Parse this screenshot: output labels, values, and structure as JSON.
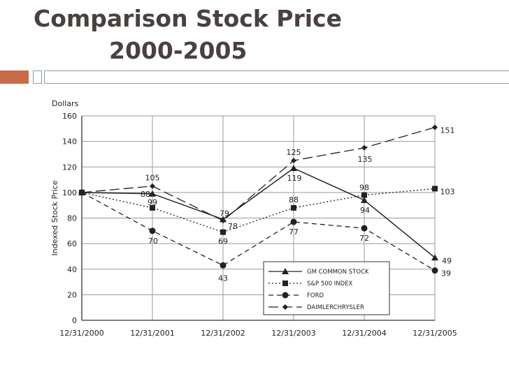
{
  "slide": {
    "title_line1": "Comparison Stock Price",
    "title_line2": "2000-2005",
    "accent_color": "#c96a48",
    "title_color": "#4a4040"
  },
  "chart_data": {
    "type": "line",
    "title": "",
    "units_label": "Dollars",
    "ylabel": "Indexed Stock Price",
    "xlabel": "",
    "ylim": [
      0,
      160
    ],
    "yticks": [
      0,
      20,
      40,
      60,
      80,
      100,
      120,
      140,
      160
    ],
    "categories": [
      "12/31/2000",
      "12/31/2001",
      "12/31/2002",
      "12/31/2003",
      "12/31/2004",
      "12/31/2005"
    ],
    "grid": true,
    "legend_position": "bottom-right",
    "series": [
      {
        "name": "GM COMMON STOCK",
        "values": [
          100,
          99,
          79,
          119,
          94,
          49
        ],
        "labels": [
          "",
          "99",
          "79",
          "119",
          "94",
          "49"
        ],
        "marker": "triangle",
        "dash": "solid"
      },
      {
        "name": "S&P 500 INDEX",
        "values": [
          100,
          88,
          69,
          88,
          98,
          103
        ],
        "labels": [
          "",
          "88",
          "69",
          "88",
          "98",
          "103"
        ],
        "marker": "square",
        "dash": "dotted"
      },
      {
        "name": "FORD",
        "values": [
          100,
          70,
          43,
          77,
          72,
          39
        ],
        "labels": [
          "",
          "70",
          "43",
          "77",
          "72",
          "39"
        ],
        "marker": "circle",
        "dash": "dashed"
      },
      {
        "name": "DAIMLERCHRYSLER",
        "values": [
          100,
          105,
          78,
          125,
          135,
          151
        ],
        "labels": [
          "",
          "105",
          "78",
          "125",
          "135",
          "151"
        ],
        "marker": "diamond",
        "dash": "longdash"
      }
    ]
  }
}
